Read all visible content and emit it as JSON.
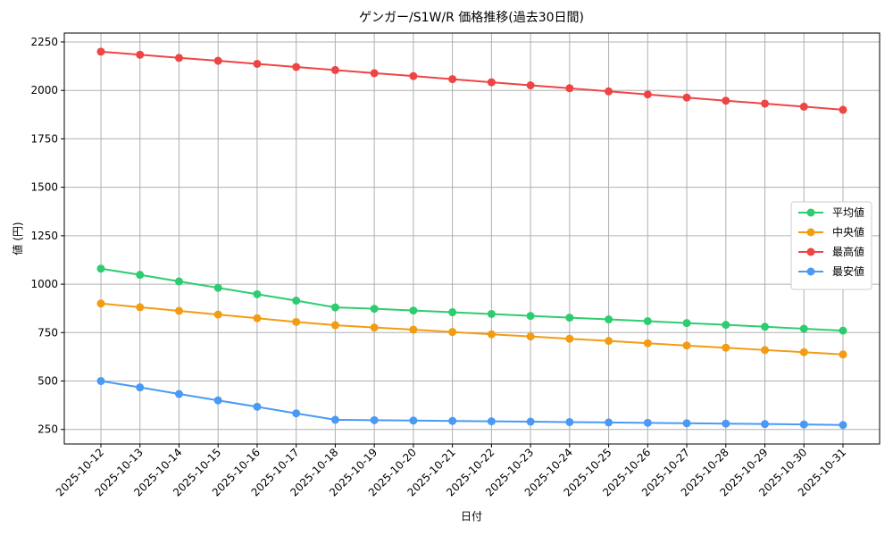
{
  "chart_data": {
    "type": "line",
    "title": "ゲンガー/S1W/R 価格推移(過去30日間)",
    "x_label": "日付",
    "y_label": "値 (円)",
    "categories": [
      "2025-10-12",
      "2025-10-13",
      "2025-10-14",
      "2025-10-15",
      "2025-10-16",
      "2025-10-17",
      "2025-10-18",
      "2025-10-19",
      "2025-10-20",
      "2025-10-21",
      "2025-10-22",
      "2025-10-23",
      "2025-10-24",
      "2025-10-25",
      "2025-10-26",
      "2025-10-27",
      "2025-10-28",
      "2025-10-29",
      "2025-10-30",
      "2025-10-31"
    ],
    "series": [
      {
        "name": "平均値",
        "color": "#2ecc71",
        "values": [
          1080,
          1048,
          1014,
          981,
          948,
          915,
          880,
          873,
          864,
          855,
          846,
          836,
          827,
          818,
          809,
          799,
          790,
          780,
          770,
          760
        ]
      },
      {
        "name": "中央値",
        "color": "#f39c12",
        "values": [
          900,
          881,
          862,
          843,
          824,
          805,
          788,
          776,
          765,
          753,
          741,
          730,
          718,
          707,
          695,
          683,
          672,
          660,
          649,
          637
        ]
      },
      {
        "name": "最高値",
        "color": "#ef4444",
        "values": [
          2200,
          2184,
          2168,
          2153,
          2137,
          2121,
          2105,
          2089,
          2074,
          2058,
          2042,
          2026,
          2011,
          1995,
          1979,
          1963,
          1947,
          1932,
          1916,
          1900
        ]
      },
      {
        "name": "最安値",
        "color": "#4a9af5",
        "values": [
          500,
          467,
          433,
          400,
          367,
          333,
          300,
          298,
          296,
          294,
          292,
          290,
          288,
          286,
          284,
          282,
          280,
          278,
          276,
          273
        ]
      }
    ],
    "ylim": [
      175,
      2296
    ],
    "yticks": [
      250,
      500,
      750,
      1000,
      1250,
      1500,
      1750,
      2000,
      2250
    ],
    "grid": true,
    "legend": "right"
  }
}
